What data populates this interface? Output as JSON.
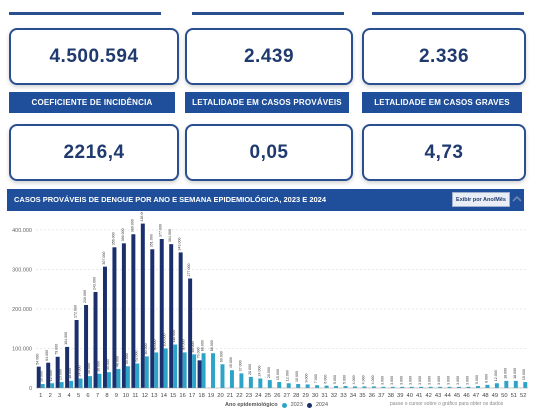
{
  "kpi_top": [
    "4.500.594",
    "2.439",
    "2.336"
  ],
  "headers": [
    "COEFICIENTE DE INCIDÊNCIA",
    "LETALIDADE EM CASOS PROVÁVEIS",
    "LETALIDADE EM CASOS GRAVES"
  ],
  "kpi_bottom": [
    "2216,4",
    "0,05",
    "4,73"
  ],
  "chart_title": "CASOS PROVÁVEIS DE DENGUE POR ANO E SEMANA EPIDEMIOLÓGICA, 2023 E 2024",
  "exibir_label": "Exibir por Ano/Mês",
  "legend": {
    "title": "Ano epidemiológico",
    "y2023": "2023",
    "y2024": "2024"
  },
  "hint": "passe o cursor sobre o gráfico para obter os dados",
  "colors": {
    "c2023": "#2ea3c8",
    "c2024": "#1a2f6b",
    "header": "#1f4f9a"
  },
  "chart_data": {
    "type": "bar",
    "ylim": [
      0,
      420000
    ],
    "yticks": [
      "0",
      "100.000",
      "200.000",
      "300.000",
      "400.000"
    ],
    "categories": [
      "1",
      "2",
      "3",
      "4",
      "5",
      "6",
      "7",
      "8",
      "9",
      "10",
      "11",
      "12",
      "13",
      "14",
      "15",
      "16",
      "17",
      "18",
      "19",
      "20",
      "21",
      "22",
      "23",
      "24",
      "25",
      "26",
      "27",
      "28",
      "29",
      "30",
      "31",
      "32",
      "33",
      "34",
      "35",
      "36",
      "37",
      "38",
      "39",
      "40",
      "41",
      "42",
      "43",
      "44",
      "45",
      "46",
      "47",
      "48",
      "49",
      "50",
      "51",
      "52"
    ],
    "series": [
      {
        "name": "2023",
        "values": [
          10000,
          12000,
          15000,
          18000,
          24000,
          30000,
          36000,
          40000,
          48000,
          55000,
          62000,
          80000,
          90000,
          100000,
          110000,
          90000,
          85000,
          88000,
          88000,
          60000,
          45000,
          37000,
          28000,
          24000,
          20000,
          15000,
          12000,
          10000,
          9000,
          7000,
          6000,
          5000,
          5000,
          4000,
          4000,
          4000,
          3000,
          3000,
          3000,
          3000,
          3000,
          3000,
          3000,
          3000,
          3000,
          3000,
          5000,
          8000,
          12000,
          18000,
          18000,
          15000
        ]
      },
      {
        "name": "2024",
        "values": [
          54000,
          64000,
          79000,
          104000,
          172000,
          210000,
          243000,
          307000,
          356000,
          366000,
          389000,
          416000,
          351000,
          377000,
          364000,
          343000,
          277000,
          70000,
          0,
          0,
          0,
          0,
          0,
          0,
          0,
          0,
          0,
          0,
          0,
          0,
          0,
          0,
          0,
          0,
          0,
          0,
          0,
          0,
          0,
          0,
          0,
          0,
          0,
          0,
          0,
          0,
          0,
          0,
          0,
          0,
          0,
          0
        ]
      }
    ]
  }
}
